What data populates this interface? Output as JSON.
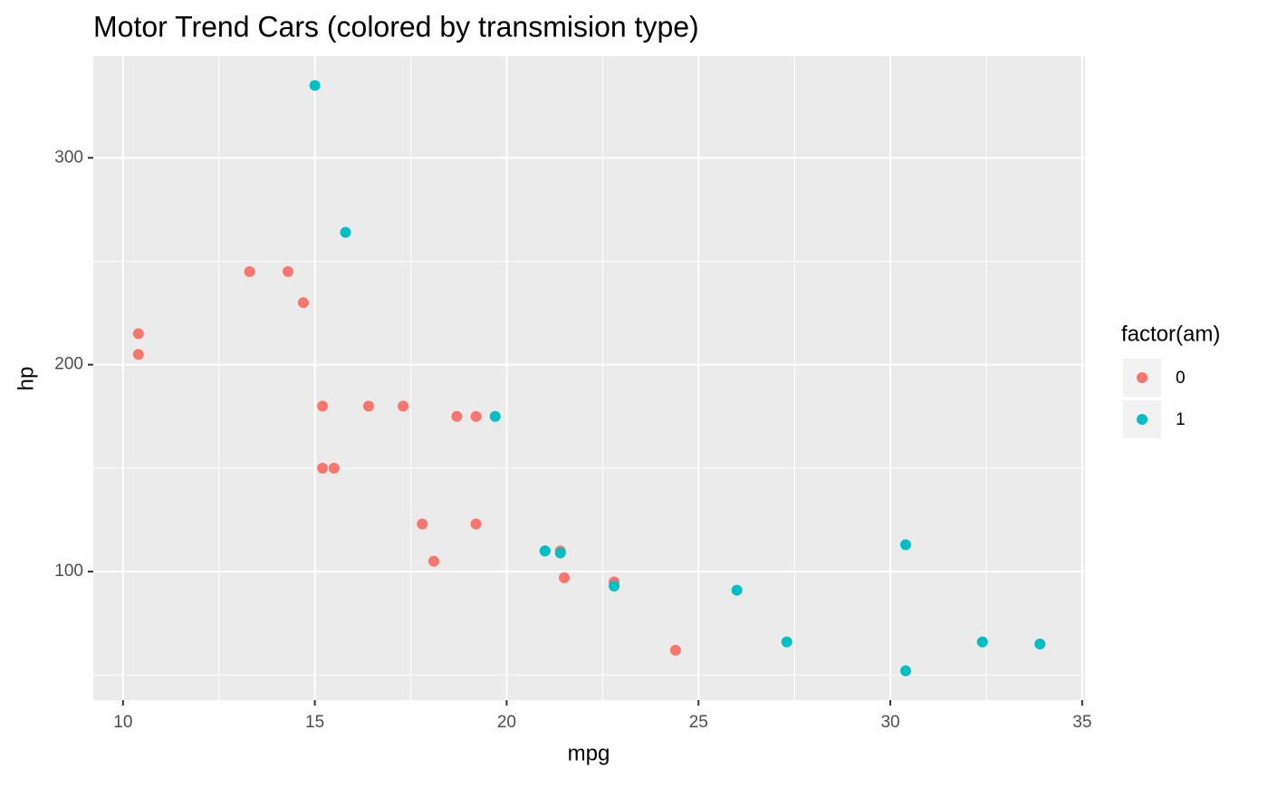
{
  "chart_data": {
    "type": "scatter",
    "title": "Motor Trend Cars (colored by transmision type)",
    "x_label": "mpg",
    "y_label": "hp",
    "legend_title": "factor(am)",
    "legend_position": "right",
    "series": [
      {
        "name": "0",
        "color": "#F8766D",
        "x": [
          21.4,
          18.7,
          18.1,
          14.3,
          24.4,
          22.8,
          19.2,
          17.8,
          16.4,
          17.3,
          15.2,
          10.4,
          10.4,
          14.7,
          21.5,
          15.5,
          15.2,
          13.3,
          19.2
        ],
        "values": [
          110,
          175,
          105,
          245,
          62,
          95,
          123,
          123,
          180,
          180,
          180,
          205,
          215,
          230,
          97,
          150,
          150,
          245,
          175
        ]
      },
      {
        "name": "1",
        "color": "#00BFC4",
        "x": [
          21,
          21,
          22.8,
          32.4,
          30.4,
          33.9,
          27.3,
          26,
          30.4,
          15.8,
          19.7,
          15,
          21.4
        ],
        "values": [
          110,
          110,
          93,
          66,
          52,
          65,
          66,
          91,
          113,
          264,
          175,
          335,
          109
        ]
      }
    ],
    "xlim": [
      9.225,
      35.075
    ],
    "xticks": [
      10,
      15,
      20,
      25,
      30,
      35
    ],
    "xminor": [
      12.5,
      17.5,
      22.5,
      27.5,
      32.5
    ],
    "ylim": [
      37.85,
      349.15
    ],
    "yticks": [
      100,
      200,
      300
    ],
    "yminor": [
      50,
      150,
      250
    ],
    "grid": true
  }
}
